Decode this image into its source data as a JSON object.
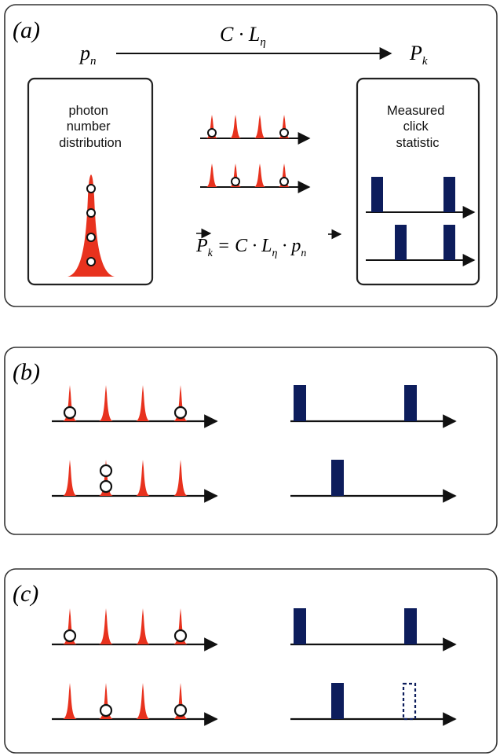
{
  "panel_a": {
    "label": "(a)",
    "p_n": "p",
    "p_n_sub": "n",
    "operator": "C · L",
    "operator_sub": "η",
    "P_k": "P",
    "P_k_sub": "k",
    "left_box_title": [
      "photon",
      "number",
      "distribution"
    ],
    "right_box_title": [
      "Measured",
      "click",
      "statistic"
    ],
    "equation": {
      "lhs": "P",
      "lhs_sub": "k",
      "mid": " = C · L",
      "mid_sub": "η",
      "dot": " · ",
      "rhs": "p",
      "rhs_sub": "n"
    }
  },
  "panel_b": {
    "label": "(b)"
  },
  "panel_c": {
    "label": "(c)"
  },
  "colors": {
    "pulse": "#e8321e",
    "click": "#0d1d5c",
    "stroke": "#111111",
    "frame": "#333333"
  }
}
